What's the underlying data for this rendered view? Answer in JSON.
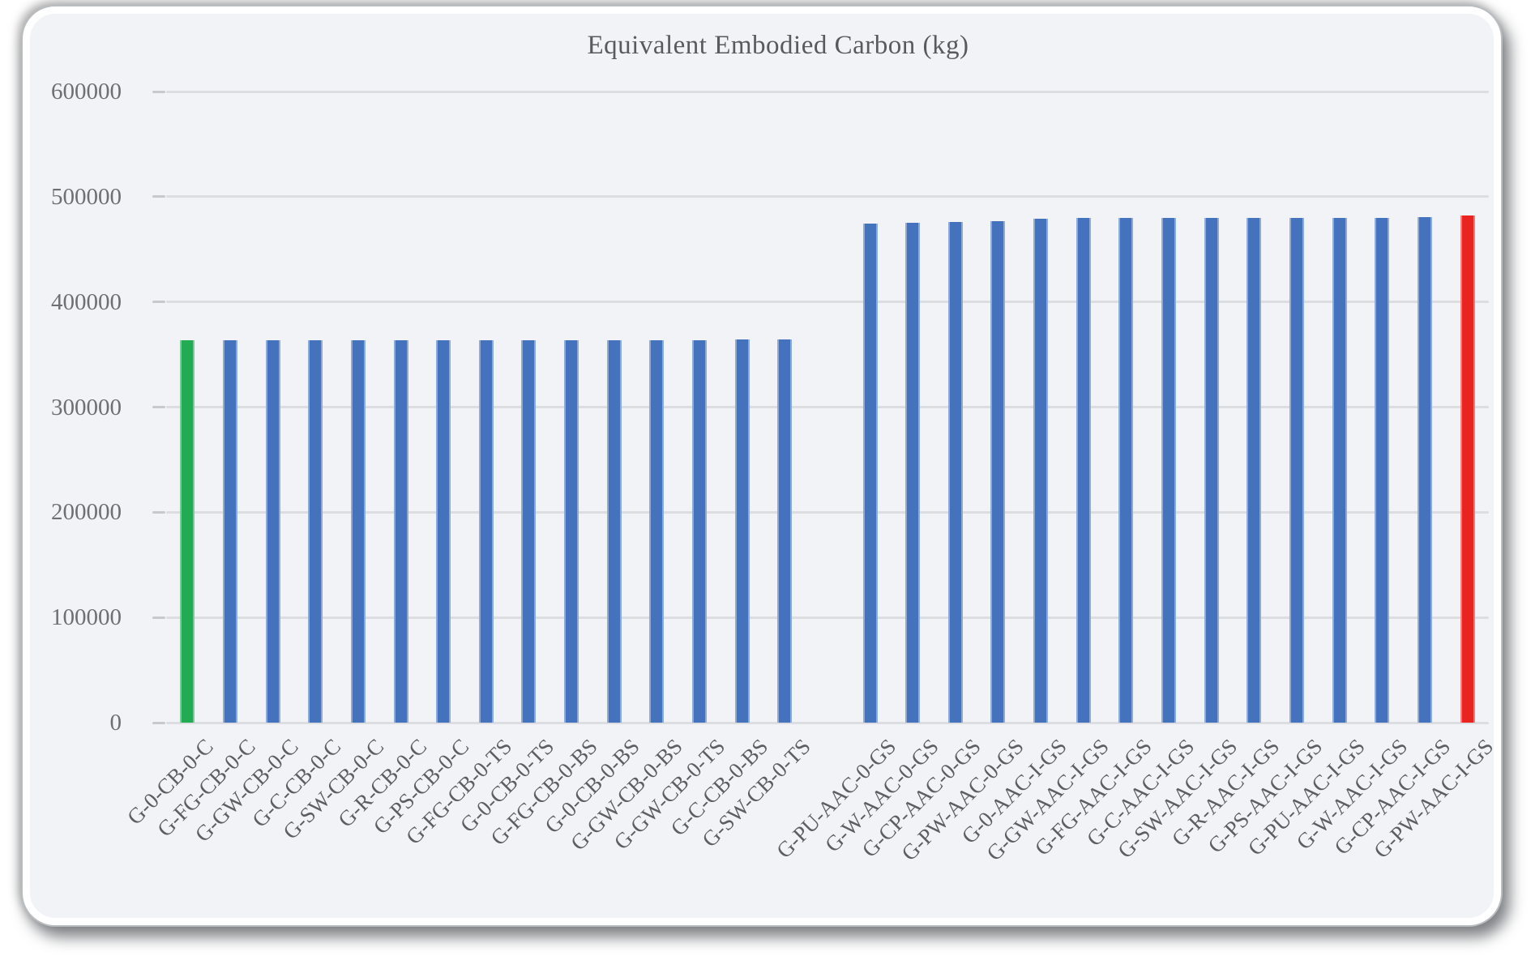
{
  "chart_data": {
    "type": "bar",
    "title": "Equivalent Embodied Carbon (kg)",
    "ylabel": "",
    "xlabel": "",
    "ylim": [
      0,
      600000
    ],
    "y_ticks": [
      600000,
      500000,
      400000,
      300000,
      200000,
      100000,
      0
    ],
    "grid": "horizontal",
    "legend": "none",
    "gap_slot_after_index": 15,
    "colors": {
      "default_bar": "#4472BC",
      "first_bar_highlight": "#21AB52",
      "last_bar_highlight": "#E82320",
      "gridline": "#DBDDE0",
      "axis_text": "#6e6f71",
      "title_text": "#595a5c",
      "plot_background": "#F2F3F6"
    },
    "bars": [
      {
        "label": "G-0-CB-0-C",
        "value": 363600,
        "color": "#21AB52"
      },
      {
        "label": "G-FG-CB-0-C",
        "value": 363200,
        "color": "#4472BC"
      },
      {
        "label": "G-GW-CB-0-C",
        "value": 363300,
        "color": "#4472BC"
      },
      {
        "label": "G-C-CB-0-C",
        "value": 363300,
        "color": "#4472BC"
      },
      {
        "label": "G-SW-CB-0-C",
        "value": 363400,
        "color": "#4472BC"
      },
      {
        "label": "G-R-CB-0-C",
        "value": 363500,
        "color": "#4472BC"
      },
      {
        "label": "G-PS-CB-0-C",
        "value": 363600,
        "color": "#4472BC"
      },
      {
        "label": "G-FG-CB-0-TS",
        "value": 363700,
        "color": "#4472BC"
      },
      {
        "label": "G-0-CB-0-TS",
        "value": 363700,
        "color": "#4472BC"
      },
      {
        "label": "G-FG-CB-0-BS",
        "value": 363800,
        "color": "#4472BC"
      },
      {
        "label": "G-0-CB-0-BS",
        "value": 363800,
        "color": "#4472BC"
      },
      {
        "label": "G-GW-CB-0-BS",
        "value": 363900,
        "color": "#4472BC"
      },
      {
        "label": "G-GW-CB-0-TS",
        "value": 363900,
        "color": "#4472BC"
      },
      {
        "label": "G-C-CB-0-BS",
        "value": 364000,
        "color": "#4472BC"
      },
      {
        "label": "G-SW-CB-0-TS",
        "value": 364100,
        "color": "#4472BC"
      },
      {
        "label": "G-PU-AAC-0-GS",
        "value": 474800,
        "color": "#4472BC"
      },
      {
        "label": "G-W-AAC-0-GS",
        "value": 475300,
        "color": "#4472BC"
      },
      {
        "label": "G-CP-AAC-0-GS",
        "value": 476100,
        "color": "#4472BC"
      },
      {
        "label": "G-PW-AAC-0-GS",
        "value": 477100,
        "color": "#4472BC"
      },
      {
        "label": "G-0-AAC-I-GS",
        "value": 479300,
        "color": "#4472BC"
      },
      {
        "label": "G-GW-AAC-I-GS",
        "value": 479600,
        "color": "#4472BC"
      },
      {
        "label": "G-FG-AAC-I-GS",
        "value": 479600,
        "color": "#4472BC"
      },
      {
        "label": "G-C-AAC-I-GS",
        "value": 479500,
        "color": "#4472BC"
      },
      {
        "label": "G-SW-AAC-I-GS",
        "value": 479600,
        "color": "#4472BC"
      },
      {
        "label": "G-R-AAC-I-GS",
        "value": 479700,
        "color": "#4472BC"
      },
      {
        "label": "G-PS-AAC-I-GS",
        "value": 479700,
        "color": "#4472BC"
      },
      {
        "label": "G-PU-AAC-I-GS",
        "value": 479800,
        "color": "#4472BC"
      },
      {
        "label": "G-W-AAC-I-GS",
        "value": 480000,
        "color": "#4472BC"
      },
      {
        "label": "G-CP-AAC-I-GS",
        "value": 480900,
        "color": "#4472BC"
      },
      {
        "label": "G-PW-AAC-I-GS",
        "value": 482500,
        "color": "#E82320"
      }
    ]
  }
}
